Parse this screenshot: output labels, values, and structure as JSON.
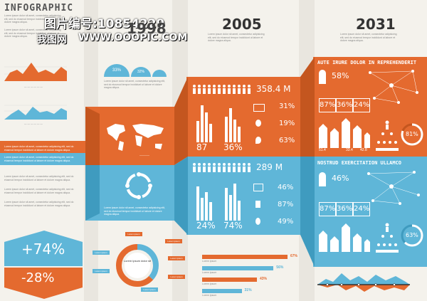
{
  "header": {
    "title": "INFOGRAPHIC",
    "watermark_line1": "图片编号:10854229",
    "watermark_line2": "我图网",
    "watermark_url": "WWW.OOOPIC.COM"
  },
  "years": [
    "1998",
    "2005",
    "2031"
  ],
  "col2": {
    "pct_a": "33%",
    "pct_b": "32%"
  },
  "col3": {
    "population_top": "358.4 M",
    "population_bottom": "289 M",
    "bars_top_pct": [
      "87",
      "36%"
    ],
    "bars_bottom_pct": [
      "24%",
      "74%"
    ],
    "icon_stats_top": [
      "31%",
      "19%",
      "63%"
    ],
    "icon_stats_bottom": [
      "46%",
      "87%",
      "49%"
    ]
  },
  "col4": {
    "heading_top": "AUTE IRURE DOLOR IN REPREHENDERIT",
    "heading_bottom": "NOSTRUD EXERCITATION ULLAMCO",
    "person_pct_top": "58%",
    "person_pct_bottom": "46%",
    "boxes_top": [
      "87%",
      "36%",
      "24%"
    ],
    "boxes_bottom": [
      "87%",
      "36%",
      "24%"
    ],
    "circle_top": "81%",
    "circle_bottom": "63%",
    "small_values_top": [
      "51.4",
      "33.4",
      "42.8"
    ]
  },
  "bottom_left": {
    "big_pct_top": "+74%",
    "big_pct_bottom": "-28%"
  },
  "donut": {
    "center_label": "Lorem ipsum dolor sit",
    "legend": [
      "Lorem ipsum",
      "Lorem ipsum",
      "Lorem ipsum",
      "Lorem ipsum",
      "Lorem ipsum",
      "Lorem ipsum",
      "Lorem ipsum"
    ]
  },
  "hbars": [
    {
      "label": "Lorem ipsum",
      "value": "67%",
      "pct": 67,
      "color": "#e46a2f"
    },
    {
      "label": "Lorem ipsum",
      "value": "56%",
      "pct": 56,
      "color": "#5fb6d8"
    },
    {
      "label": "Lorem ipsum",
      "value": "43%",
      "pct": 43,
      "color": "#e46a2f"
    },
    {
      "label": "Lorem ipsum",
      "value": "31%",
      "pct": 31,
      "color": "#5fb6d8"
    }
  ],
  "lorem": "Lorem ipsum dolor sit amet, consectetur adipisicing elit, sed do eiusmod tempor incididunt ut labore et dolore magna aliqua.",
  "colors": {
    "orange": "#e46a2f",
    "blue": "#5fb6d8",
    "bg": "#f4f2ec"
  }
}
